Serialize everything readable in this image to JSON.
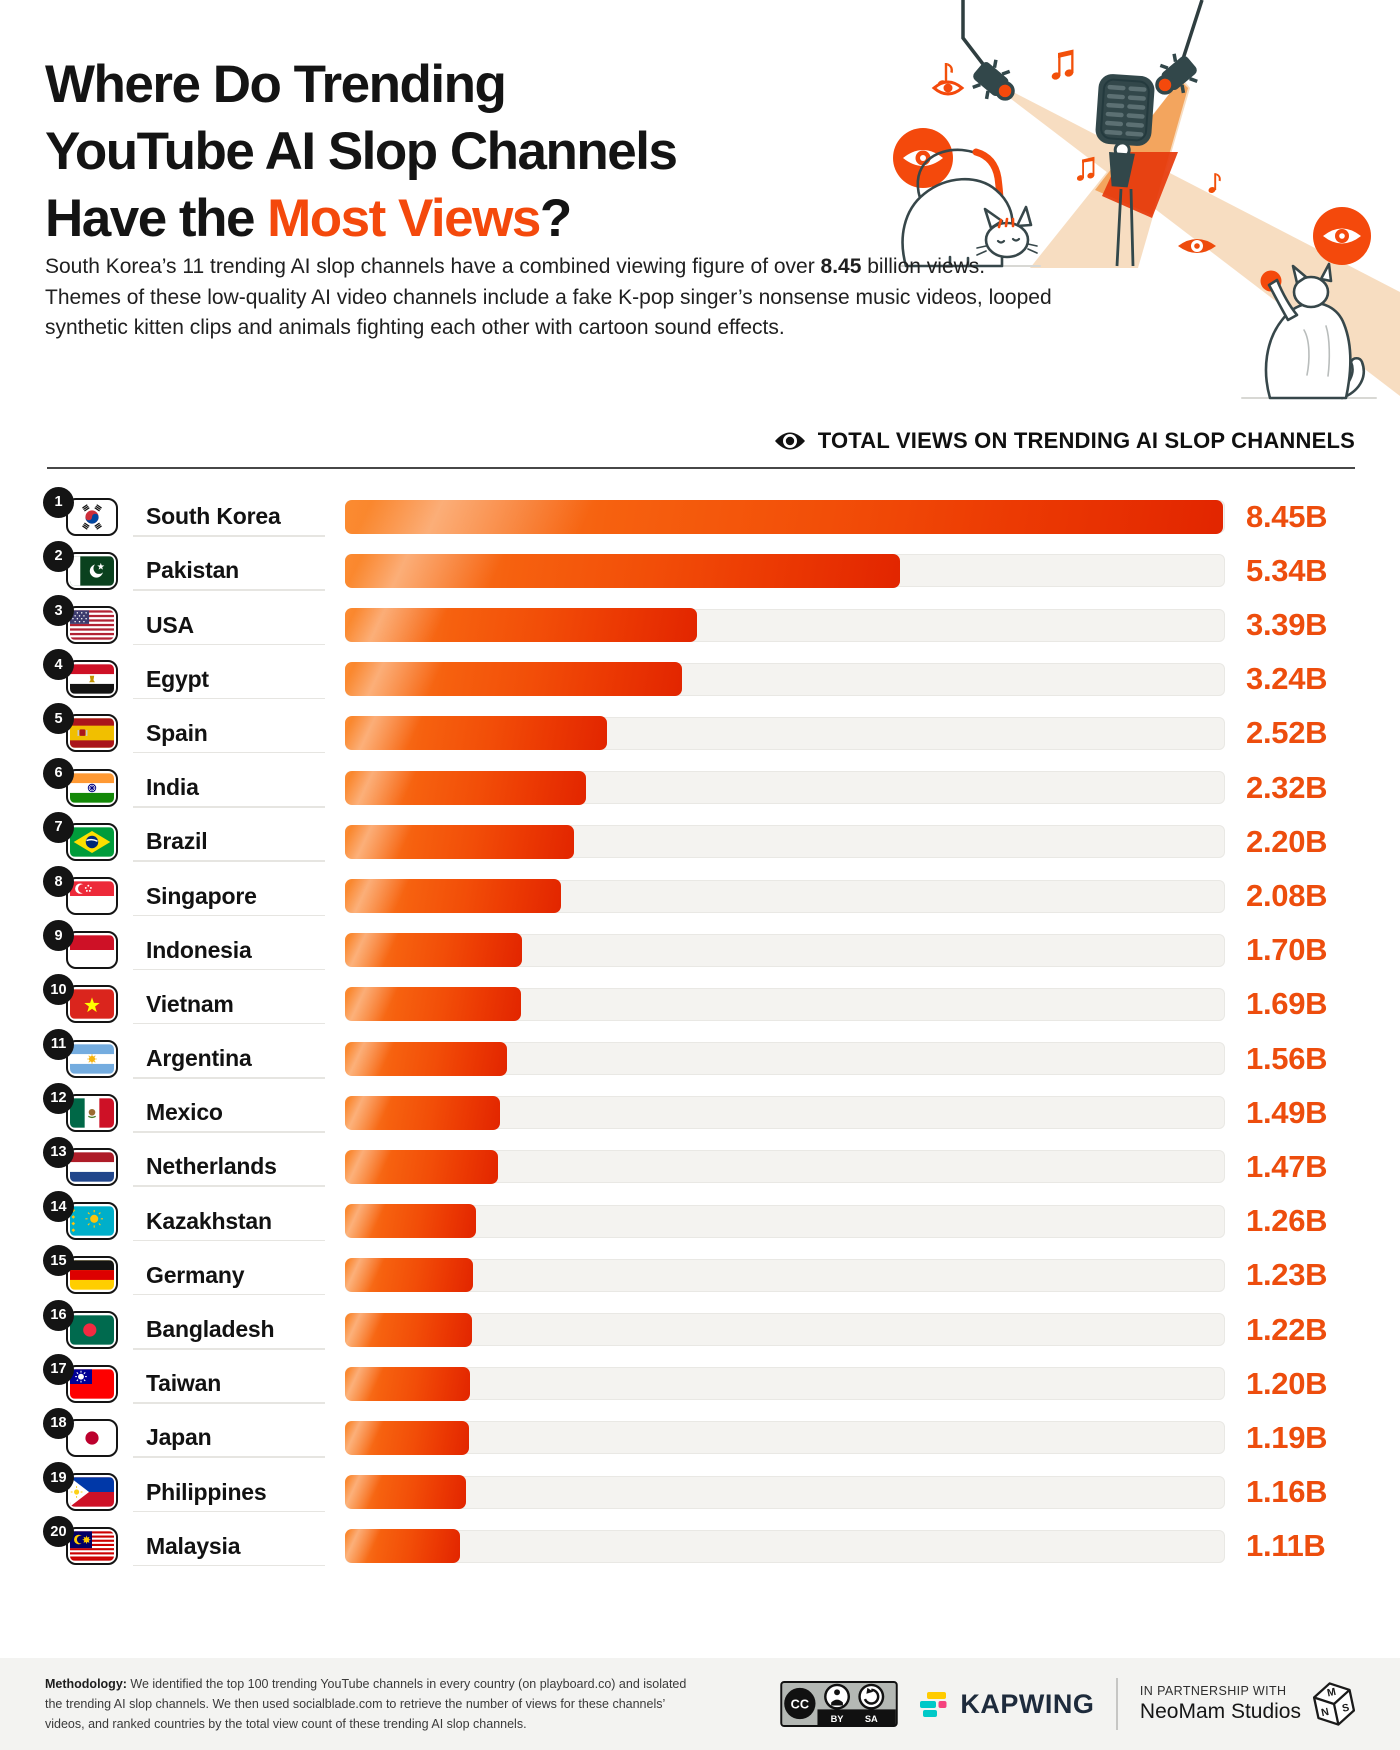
{
  "title": {
    "line1": "Where Do Trending",
    "line2": "YouTube AI Slop Channels",
    "line3_prefix": "Have the ",
    "line3_accent": "Most Views",
    "line3_suffix": "?"
  },
  "intro": {
    "p1_prefix": "South Korea’s 11 trending AI slop channels have a combined viewing figure of over ",
    "p1_bold": "8.45",
    "p1_suffix": " billion views.",
    "p2": "Themes of these low-quality AI video channels include a fake K-pop singer’s nonsense music videos, looped synthetic kitten clips and animals fighting each other with cartoon sound effects."
  },
  "chart": {
    "header_label": "TOTAL VIEWS ON TRENDING AI SLOP CHANNELS"
  },
  "chart_data": {
    "type": "bar",
    "orientation": "horizontal",
    "title": "TOTAL VIEWS ON TRENDING AI SLOP CHANNELS",
    "unit": "billions of views",
    "xlim": [
      0,
      8.45
    ],
    "grid": false,
    "legend": "none",
    "ranks": [
      1,
      2,
      3,
      4,
      5,
      6,
      7,
      8,
      9,
      10,
      11,
      12,
      13,
      14,
      15,
      16,
      17,
      18,
      19,
      20
    ],
    "categories": [
      "South Korea",
      "Pakistan",
      "USA",
      "Egypt",
      "Spain",
      "India",
      "Brazil",
      "Singapore",
      "Indonesia",
      "Vietnam",
      "Argentina",
      "Mexico",
      "Netherlands",
      "Kazakhstan",
      "Germany",
      "Bangladesh",
      "Taiwan",
      "Japan",
      "Philippines",
      "Malaysia"
    ],
    "values": [
      8.45,
      5.34,
      3.39,
      3.24,
      2.52,
      2.32,
      2.2,
      2.08,
      1.7,
      1.69,
      1.56,
      1.49,
      1.47,
      1.26,
      1.23,
      1.22,
      1.2,
      1.19,
      1.16,
      1.11
    ],
    "value_labels": [
      "8.45B",
      "5.34B",
      "3.39B",
      "3.24B",
      "2.52B",
      "2.32B",
      "2.20B",
      "2.08B",
      "1.70B",
      "1.69B",
      "1.56B",
      "1.49B",
      "1.47B",
      "1.26B",
      "1.23B",
      "1.22B",
      "1.20B",
      "1.19B",
      "1.16B",
      "1.11B"
    ],
    "flags": [
      "south-korea",
      "pakistan",
      "usa",
      "egypt",
      "spain",
      "india",
      "brazil",
      "singapore",
      "indonesia",
      "vietnam",
      "argentina",
      "mexico",
      "netherlands",
      "kazakhstan",
      "germany",
      "bangladesh",
      "taiwan",
      "japan",
      "philippines",
      "malaysia"
    ]
  },
  "footer": {
    "methodology_label": "Methodology:",
    "methodology_text": " We identified the top 100 trending YouTube channels in every country (on playboard.co) and isolated the trending AI slop channels. We then used socialblade.com to retrieve the number of views for these channels’ videos, and ranked countries by the total view count of these trending AI slop channels.",
    "license_by": "BY",
    "license_sa": "SA",
    "license_cc": "CC",
    "kapwing_label": "KAPWING",
    "partnership_line1": "IN PARTNERSHIP WITH",
    "partnership_line2": "NeoMam Studios"
  },
  "colors": {
    "accent": "#F4490C",
    "value_text": "#ED4D0D",
    "bar_gradient_start": "#FB8B31",
    "bar_gradient_end": "#E22500",
    "track": "#F4F3F0",
    "footer_bg": "#F3F3F1"
  }
}
